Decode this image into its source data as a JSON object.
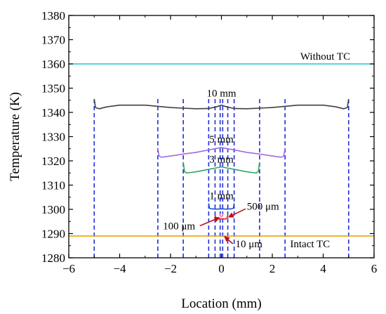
{
  "chart_data": {
    "type": "line",
    "xlabel": "Location (mm)",
    "ylabel": "Temperature (K)",
    "xlim": [
      -6,
      6
    ],
    "ylim": [
      1280,
      1380
    ],
    "x_ticks": [
      "−6",
      "−4",
      "−2",
      "0",
      "2",
      "4",
      "6"
    ],
    "y_ticks": [
      "1280",
      "1290",
      "1300",
      "1310",
      "1320",
      "1330",
      "1340",
      "1350",
      "1360",
      "1370",
      "1380"
    ],
    "grid": false,
    "series": [
      {
        "name": "Without TC",
        "color": "#22C3D0",
        "x": [
          -6,
          6
        ],
        "y": [
          1360,
          1360
        ]
      },
      {
        "name": "Intact TC",
        "color": "#F0A000",
        "x": [
          -6,
          6
        ],
        "y": [
          1289,
          1289
        ]
      },
      {
        "name": "10 mm",
        "color": "#404040",
        "x": [
          -5,
          -4.95,
          -4.8,
          -4.5,
          -4,
          -3,
          -2,
          -1,
          -0.5,
          -0.2,
          0,
          0.2,
          0.5,
          1,
          2,
          3,
          4,
          4.5,
          4.8,
          4.95,
          5
        ],
        "y": [
          1345.5,
          1342,
          1341.5,
          1342.3,
          1343,
          1343,
          1342,
          1341.5,
          1341.6,
          1342.3,
          1343,
          1342.3,
          1341.6,
          1341.5,
          1342,
          1343,
          1343,
          1342.3,
          1341.5,
          1342,
          1345.5
        ]
      },
      {
        "name": "5 mm",
        "color": "#A46BE0",
        "x": [
          -2.5,
          -2.45,
          -2.35,
          -2,
          -1.5,
          -1,
          -0.5,
          0,
          0.5,
          1,
          1.5,
          2,
          2.35,
          2.45,
          2.5
        ],
        "y": [
          1325,
          1322,
          1321.5,
          1322,
          1322.8,
          1323.5,
          1324.5,
          1325.5,
          1324.5,
          1323.5,
          1322.8,
          1322,
          1321.5,
          1322,
          1325
        ]
      },
      {
        "name": "3 mm",
        "color": "#2EA860",
        "x": [
          -1.5,
          -1.45,
          -1.35,
          -1,
          -0.5,
          0,
          0.5,
          1,
          1.35,
          1.45,
          1.5
        ],
        "y": [
          1319.5,
          1315.5,
          1315,
          1315.5,
          1316.5,
          1317.5,
          1316.5,
          1315.5,
          1315,
          1315.5,
          1319.5
        ]
      },
      {
        "name": "1 mm",
        "color": "#1A55D0",
        "x": [
          -0.5,
          -0.47,
          -0.4,
          -0.2,
          0,
          0.2,
          0.4,
          0.47,
          0.5
        ],
        "y": [
          1302.5,
          1300.5,
          1300.2,
          1300.1,
          1300.2,
          1300.1,
          1300.2,
          1300.5,
          1302.5
        ]
      },
      {
        "name": "500 μm",
        "color": "#E0201C",
        "x": [
          -0.25,
          -0.22,
          -0.15,
          0,
          0.15,
          0.22,
          0.25
        ],
        "y": [
          1297.8,
          1296.4,
          1296,
          1296.1,
          1296,
          1296.4,
          1297.8
        ]
      },
      {
        "name": "100 μm",
        "color": "#E878C8",
        "x": [
          -0.05,
          -0.04,
          0,
          0.04,
          0.05
        ],
        "y": [
          1298.2,
          1297.2,
          1297,
          1297.2,
          1298.2
        ]
      }
    ],
    "boundary_lines_x": [
      -5,
      -2.5,
      -1.5,
      -0.5,
      -0.25,
      -0.05,
      0.05,
      0.25,
      0.5,
      1.5,
      2.5,
      5
    ],
    "boundary_color": "#1E2FD6",
    "annotations": [
      {
        "text": "Without TC",
        "x": 3.1,
        "y": 1361.8
      },
      {
        "text": "10 mm",
        "x": 0,
        "y": 1346.5,
        "anchor": "middle"
      },
      {
        "text": "5 mm",
        "x": 0,
        "y": 1327.5,
        "anchor": "middle"
      },
      {
        "text": "3 mm",
        "x": 0,
        "y": 1319.3,
        "anchor": "middle"
      },
      {
        "text": "1 mm",
        "x": 0,
        "y": 1304.2,
        "anchor": "middle"
      },
      {
        "text": "500 μm",
        "x": 1.0,
        "y": 1299.8
      },
      {
        "text": "100 μm",
        "x": -2.3,
        "y": 1291.8
      },
      {
        "text": "10 μm",
        "x": 0.55,
        "y": 1284.3
      },
      {
        "text": "Intact TC",
        "x": 2.7,
        "y": 1284.4
      }
    ],
    "arrows": [
      {
        "from": [
          0.95,
          1300.2
        ],
        "to": [
          0.28,
          1296.8
        ]
      },
      {
        "from": [
          -0.85,
          1293.2
        ],
        "to": [
          -0.08,
          1296.6
        ]
      },
      {
        "from": [
          0.45,
          1285.8
        ],
        "to": [
          0.12,
          1288.8
        ]
      }
    ],
    "arrow_color": "#C0101A"
  }
}
